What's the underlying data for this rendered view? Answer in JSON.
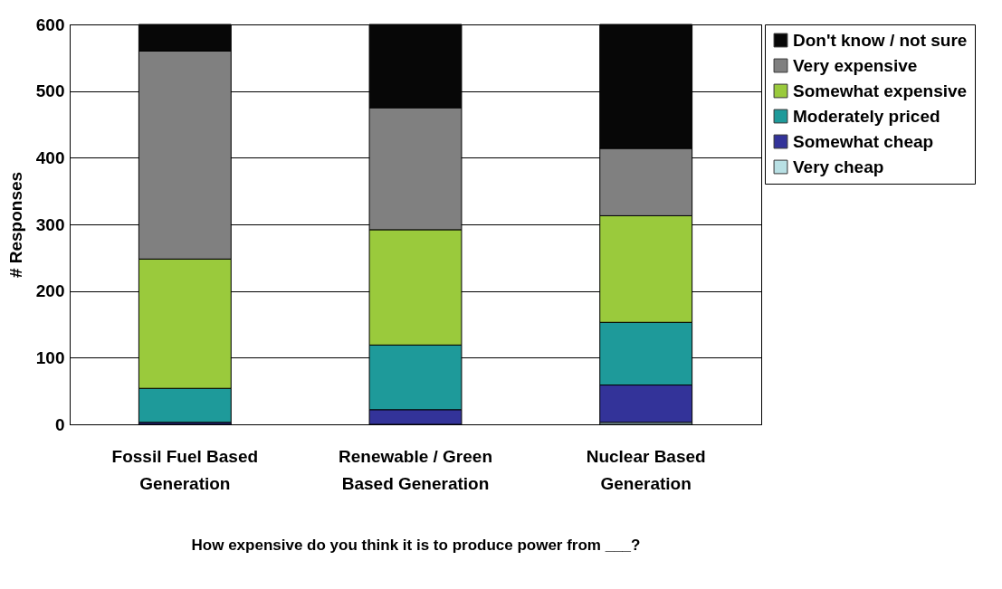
{
  "chart_data": {
    "type": "bar",
    "stacked": true,
    "xlabel": "How expensive do you think it is to produce power from ___?",
    "ylabel": "# Responses",
    "categories": [
      "Fossil Fuel Based Generation",
      "Renewable / Green Based Generation",
      "Nuclear Based Generation"
    ],
    "series": [
      {
        "name": "Very cheap",
        "color": "#b8e0e4",
        "values": [
          0,
          0,
          3
        ]
      },
      {
        "name": "Somewhat cheap",
        "color": "#333399",
        "values": [
          3,
          22,
          56
        ]
      },
      {
        "name": "Moderately priced",
        "color": "#1e9a9a",
        "values": [
          51,
          97,
          94
        ]
      },
      {
        "name": "Somewhat expensive",
        "color": "#9aca3c",
        "values": [
          194,
          173,
          160
        ]
      },
      {
        "name": "Very expensive",
        "color": "#808080",
        "values": [
          312,
          183,
          101
        ]
      },
      {
        "name": "Don't know / not sure",
        "color": "#070707",
        "values": [
          40,
          125,
          186
        ]
      }
    ],
    "ylim": [
      0,
      600
    ],
    "yticks": [
      0,
      100,
      200,
      300,
      400,
      500,
      600
    ],
    "grid": "y",
    "legend": "right"
  }
}
